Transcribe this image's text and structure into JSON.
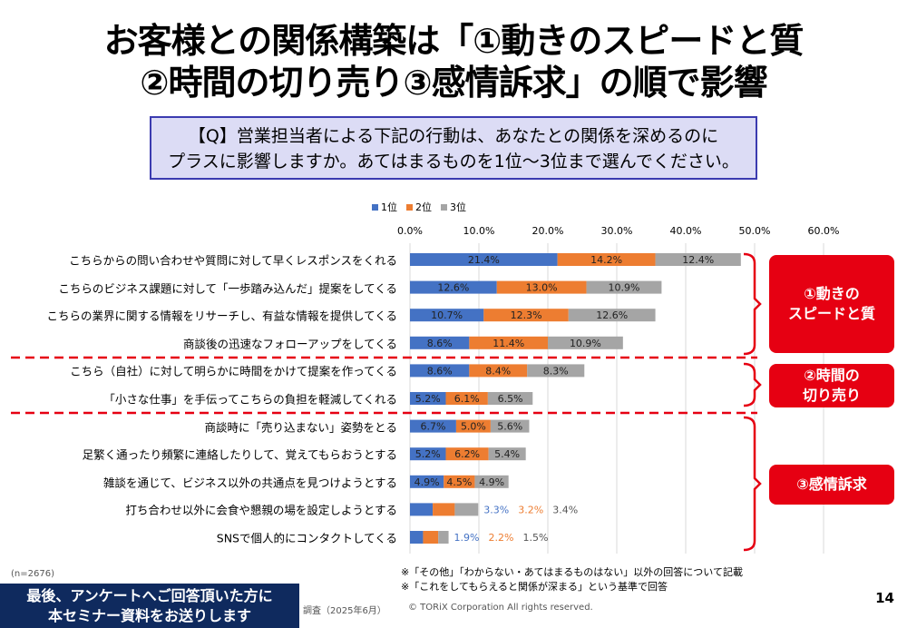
{
  "title": {
    "line1": "お客様との関係構築は「①動きのスピードと質",
    "line2": "②時間の切り売り③感情訴求」の順で影響"
  },
  "question": {
    "line1": "【Q】営業担当者による下記の行動は、あなたとの関係を深めるのに",
    "line2": "プラスに影響しますか。あてはまるものを1位～3位まで選んでください。"
  },
  "groups": [
    {
      "label1": "①動きの",
      "label2": "スピードと質"
    },
    {
      "label1": "②時間の",
      "label2": "切り売り"
    },
    {
      "label1": "③感情訴求",
      "label2": ""
    }
  ],
  "footer": {
    "n": "(n=2676)",
    "source": "調査（2025年6月）",
    "copyright": "© TORiX Corporation All rights reserved.",
    "note1": "※「その他」「わからない・あてはまるものはない」以外の回答について記載",
    "note2": "※「これをしてもらえると関係が深まる」という基準で回答",
    "banner1": "最後、アンケートへご回答頂いた方に",
    "banner2": "本セミナー資料をお送りします",
    "page": "14"
  },
  "chart_data": {
    "type": "bar",
    "orientation": "horizontal",
    "stacked": true,
    "xlim": [
      0,
      60
    ],
    "legend_position": "top",
    "ticks": [
      "0.0%",
      "10.0%",
      "20.0%",
      "30.0%",
      "40.0%",
      "50.0%",
      "60.0%"
    ],
    "categories": [
      "こちらからの問い合わせや質問に対して早くレスポンスをくれる",
      "こちらのビジネス課題に対して「一歩踏み込んだ」提案をしてくる",
      "こちらの業界に関する情報をリサーチし、有益な情報を提供してくる",
      "商談後の迅速なフォローアップをしてくる",
      "こちら（自社）に対して明らかに時間をかけて提案を作ってくる",
      "「小さな仕事」を手伝ってこちらの負担を軽減してくれる",
      "商談時に「売り込まない」姿勢をとる",
      "足繁く通ったり頻繁に連絡したりして、覚えてもらおうとする",
      "雑談を通じて、ビジネス以外の共通点を見つけようとする",
      "打ち合わせ以外に会食や懇親の場を設定しようとする",
      "SNSで個人的にコンタクトしてくる"
    ],
    "series": [
      {
        "name": "1位",
        "color": "#4472c4",
        "values": [
          21.4,
          12.6,
          10.7,
          8.6,
          8.6,
          5.2,
          6.7,
          5.2,
          4.9,
          3.3,
          1.9
        ]
      },
      {
        "name": "2位",
        "color": "#ed7d31",
        "values": [
          14.2,
          13.0,
          12.3,
          11.4,
          8.4,
          6.1,
          5.0,
          6.2,
          4.5,
          3.2,
          2.2
        ]
      },
      {
        "name": "3位",
        "color": "#a5a5a5",
        "values": [
          12.4,
          10.9,
          12.6,
          10.9,
          8.3,
          6.5,
          5.6,
          5.4,
          4.9,
          3.4,
          1.5
        ]
      }
    ]
  }
}
